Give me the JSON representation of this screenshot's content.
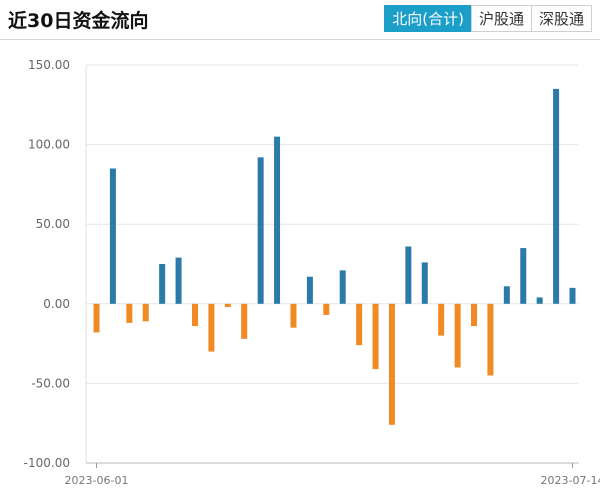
{
  "header": {
    "title": "近30日资金流向",
    "tabs": [
      {
        "label": "北向(合计)",
        "active": true
      },
      {
        "label": "沪股通",
        "active": false
      },
      {
        "label": "深股通",
        "active": false
      }
    ]
  },
  "colors": {
    "positive": "#2b7ba8",
    "negative": "#f08a24",
    "accent": "#1b9fc8"
  },
  "chart_data": {
    "type": "bar",
    "title": "",
    "xlabel": "",
    "ylabel": "",
    "ylim": [
      -100,
      150
    ],
    "yticks": [
      "150.00",
      "100.00",
      "50.00",
      "0.00",
      "-50.00",
      "-100.00"
    ],
    "xtick_labels": [
      "2023-06-01",
      "2023-07-14"
    ],
    "grid": true,
    "legend": "none",
    "values": [
      -18,
      85,
      -12,
      -11,
      25,
      29,
      -14,
      -30,
      -2,
      -22,
      92,
      105,
      -15,
      17,
      -7,
      21,
      -26,
      -41,
      -76,
      36,
      26,
      -20,
      -40,
      -14,
      -45,
      11,
      35,
      4,
      135,
      10
    ]
  }
}
